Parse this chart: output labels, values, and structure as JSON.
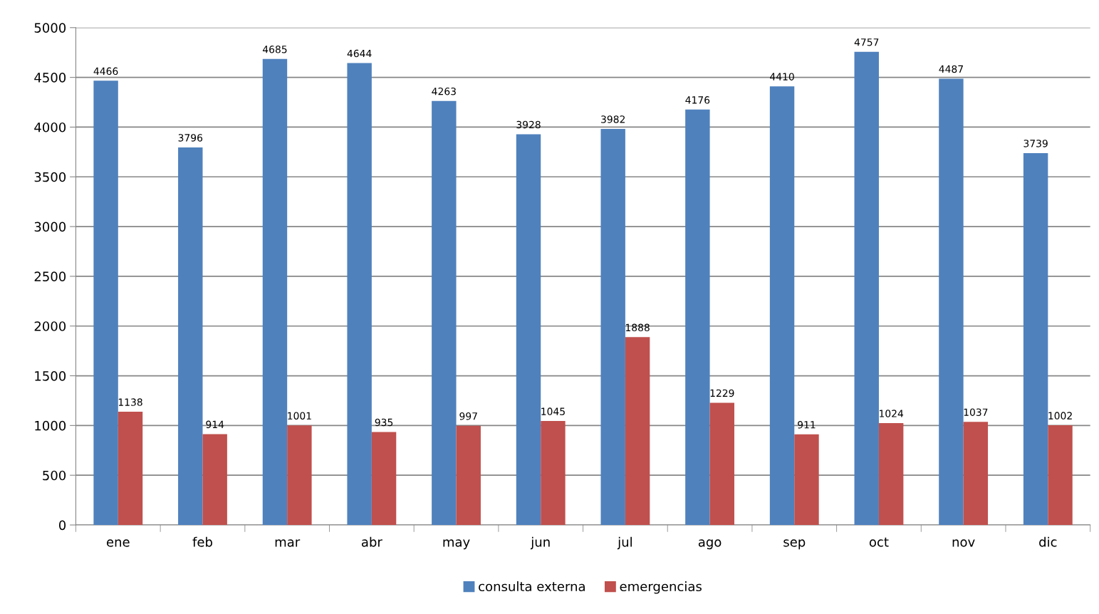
{
  "chart_data": {
    "type": "bar",
    "categories": [
      "ene",
      "feb",
      "mar",
      "abr",
      "may",
      "jun",
      "jul",
      "ago",
      "sep",
      "oct",
      "nov",
      "dic"
    ],
    "series": [
      {
        "name": "consulta externa",
        "color": "#4f81bd",
        "values": [
          4466,
          3796,
          4685,
          4644,
          4263,
          3928,
          3982,
          4176,
          4410,
          4757,
          4487,
          3739
        ]
      },
      {
        "name": "emergencias",
        "color": "#c0504d",
        "values": [
          1138,
          914,
          1001,
          935,
          997,
          1045,
          1888,
          1229,
          911,
          1024,
          1037,
          1002
        ]
      }
    ],
    "ylim": [
      0,
      5000
    ],
    "yticks": [
      0,
      500,
      1000,
      1500,
      2000,
      2500,
      3000,
      3500,
      4000,
      4500,
      5000
    ],
    "grid": "y",
    "legend": "bottom",
    "data_labels": true
  }
}
